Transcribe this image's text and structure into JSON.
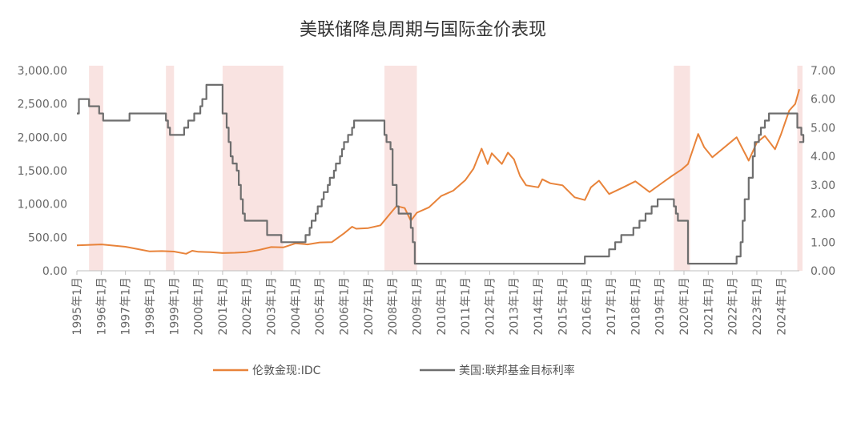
{
  "chart_data": {
    "type": "line",
    "title": "美联储降息周期与国际金价表现",
    "x_range": [
      "1995-01",
      "2024-10"
    ],
    "x_tick_labels": [
      "1995年1月",
      "1996年1月",
      "1997年1月",
      "1998年1月",
      "1999年1月",
      "2000年1月",
      "2001年1月",
      "2002年1月",
      "2003年1月",
      "2004年1月",
      "2005年1月",
      "2006年1月",
      "2007年1月",
      "2008年1月",
      "2009年1月",
      "2010年1月",
      "2011年1月",
      "2012年1月",
      "2013年1月",
      "2014年1月",
      "2015年1月",
      "2016年1月",
      "2017年1月",
      "2018年1月",
      "2019年1月",
      "2020年1月",
      "2021年1月",
      "2022年1月",
      "2023年1月",
      "2024年1月"
    ],
    "y_left": {
      "min": 0,
      "max": 3000,
      "ticks": [
        "0.00",
        "500.00",
        "1,000.00",
        "1,500.00",
        "2,000.00",
        "2,500.00",
        "3,000.00"
      ]
    },
    "y_right": {
      "min": 0,
      "max": 7,
      "ticks": [
        "0.00",
        "1.00",
        "2.00",
        "3.00",
        "4.00",
        "5.00",
        "6.00",
        "7.00"
      ]
    },
    "shaded_periods": [
      [
        "1995-07",
        "1996-02"
      ],
      [
        "1998-09",
        "1999-01"
      ],
      [
        "2001-01",
        "2003-07"
      ],
      [
        "2007-09",
        "2009-01"
      ],
      [
        "2019-08",
        "2020-04"
      ],
      [
        "2024-09",
        "2024-12"
      ]
    ],
    "shade_color": "#f9e3e1",
    "series": [
      {
        "name": "伦敦金现:IDC",
        "axis": "left",
        "color": "#e8833a",
        "points": [
          [
            "1995-01",
            380
          ],
          [
            "1996-01",
            395
          ],
          [
            "1997-01",
            360
          ],
          [
            "1997-07",
            325
          ],
          [
            "1998-01",
            290
          ],
          [
            "1998-07",
            295
          ],
          [
            "1999-01",
            288
          ],
          [
            "1999-07",
            255
          ],
          [
            "1999-10",
            300
          ],
          [
            "2000-01",
            285
          ],
          [
            "2000-07",
            280
          ],
          [
            "2001-01",
            265
          ],
          [
            "2001-07",
            270
          ],
          [
            "2002-01",
            280
          ],
          [
            "2002-07",
            312
          ],
          [
            "2003-01",
            355
          ],
          [
            "2003-07",
            350
          ],
          [
            "2004-01",
            410
          ],
          [
            "2004-07",
            395
          ],
          [
            "2005-01",
            425
          ],
          [
            "2005-07",
            430
          ],
          [
            "2006-01",
            560
          ],
          [
            "2006-05",
            660
          ],
          [
            "2006-07",
            630
          ],
          [
            "2007-01",
            640
          ],
          [
            "2007-07",
            680
          ],
          [
            "2008-01",
            900
          ],
          [
            "2008-03",
            970
          ],
          [
            "2008-07",
            940
          ],
          [
            "2008-10",
            750
          ],
          [
            "2009-01",
            870
          ],
          [
            "2009-07",
            950
          ],
          [
            "2010-01",
            1120
          ],
          [
            "2010-07",
            1200
          ],
          [
            "2011-01",
            1360
          ],
          [
            "2011-05",
            1530
          ],
          [
            "2011-09",
            1830
          ],
          [
            "2011-12",
            1600
          ],
          [
            "2012-02",
            1760
          ],
          [
            "2012-07",
            1600
          ],
          [
            "2012-10",
            1770
          ],
          [
            "2013-01",
            1670
          ],
          [
            "2013-04",
            1420
          ],
          [
            "2013-07",
            1280
          ],
          [
            "2014-01",
            1250
          ],
          [
            "2014-03",
            1370
          ],
          [
            "2014-07",
            1310
          ],
          [
            "2015-01",
            1280
          ],
          [
            "2015-07",
            1100
          ],
          [
            "2015-12",
            1060
          ],
          [
            "2016-03",
            1250
          ],
          [
            "2016-07",
            1350
          ],
          [
            "2016-12",
            1150
          ],
          [
            "2017-07",
            1250
          ],
          [
            "2018-01",
            1340
          ],
          [
            "2018-08",
            1180
          ],
          [
            "2019-01",
            1290
          ],
          [
            "2019-07",
            1420
          ],
          [
            "2019-12",
            1520
          ],
          [
            "2020-03",
            1600
          ],
          [
            "2020-08",
            2050
          ],
          [
            "2020-11",
            1850
          ],
          [
            "2021-03",
            1700
          ],
          [
            "2021-07",
            1800
          ],
          [
            "2022-03",
            2000
          ],
          [
            "2022-09",
            1650
          ],
          [
            "2023-01",
            1920
          ],
          [
            "2023-05",
            2020
          ],
          [
            "2023-10",
            1820
          ],
          [
            "2024-01",
            2050
          ],
          [
            "2024-05",
            2400
          ],
          [
            "2024-08",
            2500
          ],
          [
            "2024-10",
            2720
          ]
        ]
      },
      {
        "name": "美国:联邦基金目标利率",
        "axis": "right",
        "color": "#6e6e6e",
        "points": [
          [
            "1995-01",
            5.5
          ],
          [
            "1995-02",
            6.0
          ],
          [
            "1995-07",
            5.75
          ],
          [
            "1995-12",
            5.5
          ],
          [
            "1996-02",
            5.25
          ],
          [
            "1997-03",
            5.5
          ],
          [
            "1998-09",
            5.25
          ],
          [
            "1998-10",
            5.0
          ],
          [
            "1998-11",
            4.75
          ],
          [
            "1999-06",
            5.0
          ],
          [
            "1999-08",
            5.25
          ],
          [
            "1999-11",
            5.5
          ],
          [
            "2000-02",
            5.75
          ],
          [
            "2000-03",
            6.0
          ],
          [
            "2000-05",
            6.5
          ],
          [
            "2001-01",
            5.5
          ],
          [
            "2001-03",
            5.0
          ],
          [
            "2001-04",
            4.5
          ],
          [
            "2001-05",
            4.0
          ],
          [
            "2001-06",
            3.75
          ],
          [
            "2001-08",
            3.5
          ],
          [
            "2001-09",
            3.0
          ],
          [
            "2001-10",
            2.5
          ],
          [
            "2001-11",
            2.0
          ],
          [
            "2001-12",
            1.75
          ],
          [
            "2002-11",
            1.25
          ],
          [
            "2003-06",
            1.0
          ],
          [
            "2004-06",
            1.25
          ],
          [
            "2004-08",
            1.5
          ],
          [
            "2004-09",
            1.75
          ],
          [
            "2004-11",
            2.0
          ],
          [
            "2004-12",
            2.25
          ],
          [
            "2005-02",
            2.5
          ],
          [
            "2005-03",
            2.75
          ],
          [
            "2005-05",
            3.0
          ],
          [
            "2005-06",
            3.25
          ],
          [
            "2005-08",
            3.5
          ],
          [
            "2005-09",
            3.75
          ],
          [
            "2005-11",
            4.0
          ],
          [
            "2005-12",
            4.25
          ],
          [
            "2006-01",
            4.5
          ],
          [
            "2006-03",
            4.75
          ],
          [
            "2006-05",
            5.0
          ],
          [
            "2006-06",
            5.25
          ],
          [
            "2007-09",
            4.75
          ],
          [
            "2007-10",
            4.5
          ],
          [
            "2007-12",
            4.25
          ],
          [
            "2008-01",
            3.0
          ],
          [
            "2008-03",
            2.25
          ],
          [
            "2008-04",
            2.0
          ],
          [
            "2008-10",
            1.5
          ],
          [
            "2008-11",
            1.0
          ],
          [
            "2008-12",
            0.25
          ],
          [
            "2015-12",
            0.5
          ],
          [
            "2016-12",
            0.75
          ],
          [
            "2017-03",
            1.0
          ],
          [
            "2017-06",
            1.25
          ],
          [
            "2017-12",
            1.5
          ],
          [
            "2018-03",
            1.75
          ],
          [
            "2018-06",
            2.0
          ],
          [
            "2018-09",
            2.25
          ],
          [
            "2018-12",
            2.5
          ],
          [
            "2019-08",
            2.25
          ],
          [
            "2019-09",
            2.0
          ],
          [
            "2019-10",
            1.75
          ],
          [
            "2020-03",
            0.25
          ],
          [
            "2022-03",
            0.5
          ],
          [
            "2022-05",
            1.0
          ],
          [
            "2022-06",
            1.75
          ],
          [
            "2022-07",
            2.5
          ],
          [
            "2022-09",
            3.25
          ],
          [
            "2022-11",
            4.0
          ],
          [
            "2022-12",
            4.5
          ],
          [
            "2023-02",
            4.75
          ],
          [
            "2023-03",
            5.0
          ],
          [
            "2023-05",
            5.25
          ],
          [
            "2023-07",
            5.5
          ],
          [
            "2024-09",
            5.0
          ],
          [
            "2024-10",
            5.0
          ],
          [
            "2024-11",
            4.75
          ],
          [
            "2024-12",
            4.5
          ]
        ]
      }
    ],
    "legend_position": "bottom"
  }
}
